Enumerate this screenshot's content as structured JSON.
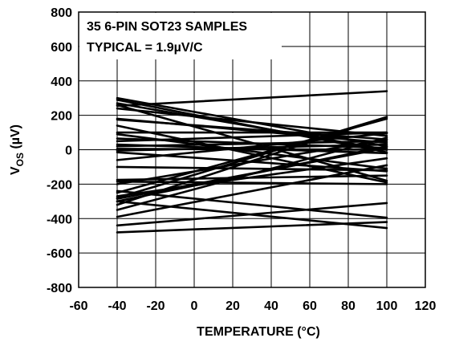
{
  "chart_data": {
    "type": "line",
    "title": "",
    "annotation_lines": [
      "35 6-PIN SOT23 SAMPLES",
      "TYPICAL =  1.9µV/C"
    ],
    "xlabel": "TEMPERATURE (°C)",
    "ylabel_main": "V",
    "ylabel_sub": "OS",
    "ylabel_unit": " (µV)",
    "xlim": [
      -60,
      120
    ],
    "ylim": [
      -800,
      800
    ],
    "x_ticks": [
      -60,
      -40,
      -20,
      0,
      20,
      40,
      60,
      80,
      100,
      120
    ],
    "y_ticks": [
      800,
      600,
      400,
      200,
      0,
      -200,
      -400,
      -600,
      -800
    ],
    "x_tick_labels": [
      "-60",
      "-40",
      "-20",
      "0",
      "20",
      "40",
      "60",
      "80",
      "100",
      "120"
    ],
    "y_tick_labels": [
      "800",
      "600",
      "400",
      "200",
      "0",
      "-200",
      "-400",
      "-600",
      "-800"
    ],
    "grid": true,
    "legend": "none",
    "line_color": "#000000",
    "x": [
      -40,
      100
    ],
    "series": [
      {
        "values": [
          255,
          340
        ]
      },
      {
        "values": [
          290,
          -15
        ]
      },
      {
        "values": [
          270,
          0
        ]
      },
      {
        "values": [
          240,
          80
        ]
      },
      {
        "values": [
          260,
          -180
        ]
      },
      {
        "values": [
          300,
          20
        ]
      },
      {
        "values": [
          175,
          60
        ]
      },
      {
        "values": [
          140,
          -190
        ]
      },
      {
        "values": [
          100,
          100
        ]
      },
      {
        "values": [
          65,
          10
        ]
      },
      {
        "values": [
          50,
          100
        ]
      },
      {
        "values": [
          30,
          -20
        ]
      },
      {
        "values": [
          20,
          50
        ]
      },
      {
        "values": [
          -5,
          30
        ]
      },
      {
        "values": [
          -15,
          -125
        ]
      },
      {
        "values": [
          -60,
          95
        ]
      },
      {
        "values": [
          -175,
          -150
        ]
      },
      {
        "values": [
          -185,
          -200
        ]
      },
      {
        "values": [
          -270,
          -50
        ]
      },
      {
        "values": [
          -285,
          10
        ]
      },
      {
        "values": [
          -300,
          20
        ]
      },
      {
        "values": [
          -250,
          180
        ]
      },
      {
        "values": [
          -280,
          190
        ]
      },
      {
        "values": [
          -320,
          190
        ]
      },
      {
        "values": [
          -350,
          70
        ]
      },
      {
        "values": [
          -390,
          -90
        ]
      },
      {
        "values": [
          -440,
          -310
        ]
      },
      {
        "values": [
          -480,
          -420
        ]
      },
      {
        "values": [
          -300,
          -455
        ]
      },
      {
        "values": [
          -240,
          -395
        ]
      },
      {
        "values": [
          -200,
          60
        ]
      },
      {
        "values": [
          90,
          -110
        ]
      },
      {
        "values": [
          180,
          40
        ]
      },
      {
        "values": [
          -100,
          -120
        ]
      },
      {
        "values": [
          5,
          0
        ]
      }
    ]
  }
}
